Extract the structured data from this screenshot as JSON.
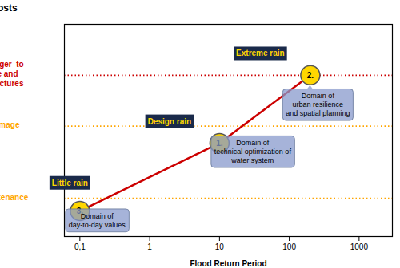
{
  "chart_data": {
    "type": "line",
    "xlabel": "Flood Return Period",
    "ylabel": "Costs",
    "log": "x",
    "xlim": [
      0.06,
      3000
    ],
    "ylim": [
      0,
      1.0
    ],
    "xticks": [
      {
        "value": 0.1,
        "label": "0,1"
      },
      1,
      10,
      100,
      1000
    ],
    "tick_labels": "x",
    "grid": false,
    "series": [
      {
        "type": "line",
        "color": "#cc0000",
        "line_style": "solid",
        "x": [
          0.1,
          10,
          200
        ],
        "values": [
          0.12,
          0.44,
          0.76
        ]
      },
      {
        "type": "scatter",
        "marker": "circle",
        "color": "#FFD700",
        "x": [
          10,
          200,
          0.1
        ],
        "values": [
          0.44,
          0.76,
          0.12
        ],
        "labels": [
          "1.",
          "2.",
          "3."
        ],
        "annotations": [
          "Design rain",
          "Extreme rain",
          "Little rain"
        ]
      }
    ],
    "hlines": [
      {
        "y": 0.18,
        "label": "Maintenance",
        "color": "#FFA500",
        "line_style": "dotted"
      },
      {
        "y": 0.52,
        "label": "Damage",
        "color": "#FFA500",
        "line_style": "dotted"
      },
      {
        "y": 0.76,
        "label": "Danger  to\nlife and\nstructures",
        "color": "#cc0000",
        "line_style": "dotted"
      }
    ],
    "annotations": [
      {
        "text": "Domain of\nurban resilience\nand spatial planning",
        "x": 200,
        "y": 0.76
      },
      {
        "text": "Domain of\ntechnical optimization of\nwater system",
        "x": 10,
        "y": 0.44
      },
      {
        "text": "Domain of\nday-to-day values",
        "x": 0.1,
        "y": 0.12
      }
    ]
  }
}
